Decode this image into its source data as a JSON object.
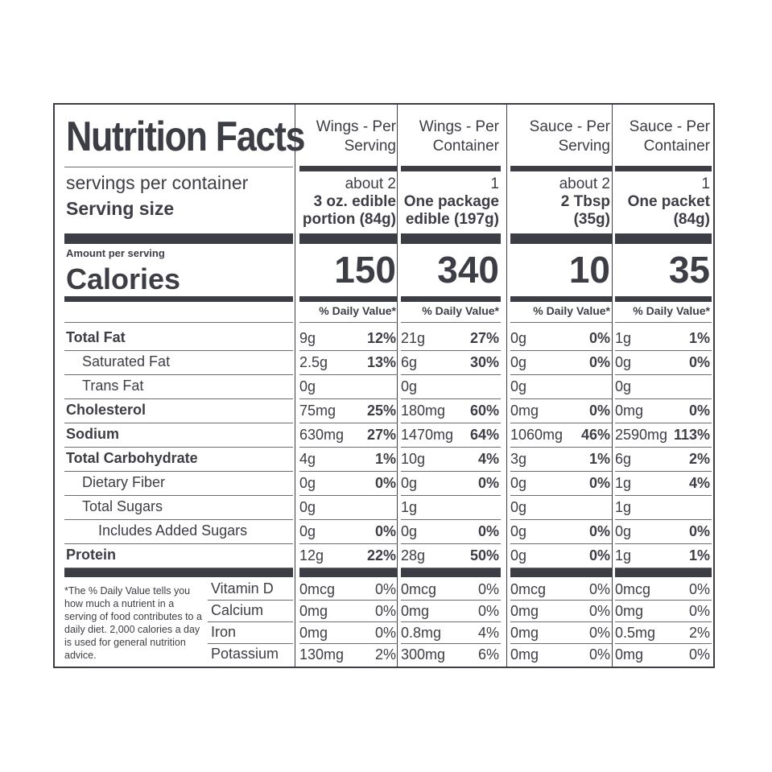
{
  "title": "Nutrition Facts",
  "servings_label": "servings per container",
  "serving_size_label": "Serving size",
  "amount_per_serving": "Amount per serving",
  "calories_label": "Calories",
  "daily_value_header": "% Daily Value*",
  "columns": [
    {
      "head1": "Wings - Per",
      "head2": "Serving",
      "servings": "about 2",
      "size1": "3 oz. edible",
      "size2": "portion (84g)",
      "calories": "150"
    },
    {
      "head1": "Wings - Per",
      "head2": "Container",
      "servings": "1",
      "size1": "One package",
      "size2": "edible (197g)",
      "calories": "340"
    },
    {
      "head1": "Sauce - Per",
      "head2": "Serving",
      "servings": "about 2",
      "size1": "2 Tbsp",
      "size2": "(35g)",
      "calories": "10"
    },
    {
      "head1": "Sauce - Per",
      "head2": "Container",
      "servings": "1",
      "size1": "One packet",
      "size2": "(84g)",
      "calories": "35"
    }
  ],
  "nutrients": [
    {
      "name": "Total Fat",
      "bold": true,
      "indent": 0,
      "values": [
        [
          "9g",
          "12%"
        ],
        [
          "21g",
          "27%"
        ],
        [
          "0g",
          "0%"
        ],
        [
          "1g",
          "1%"
        ]
      ]
    },
    {
      "name": "Saturated Fat",
      "bold": false,
      "indent": 1,
      "values": [
        [
          "2.5g",
          "13%"
        ],
        [
          "6g",
          "30%"
        ],
        [
          "0g",
          "0%"
        ],
        [
          "0g",
          "0%"
        ]
      ]
    },
    {
      "name": "Trans Fat",
      "bold": false,
      "indent": 1,
      "values": [
        [
          "0g",
          ""
        ],
        [
          "0g",
          ""
        ],
        [
          "0g",
          ""
        ],
        [
          "0g",
          ""
        ]
      ]
    },
    {
      "name": "Cholesterol",
      "bold": true,
      "indent": 0,
      "values": [
        [
          "75mg",
          "25%"
        ],
        [
          "180mg",
          "60%"
        ],
        [
          "0mg",
          "0%"
        ],
        [
          "0mg",
          "0%"
        ]
      ]
    },
    {
      "name": "Sodium",
      "bold": true,
      "indent": 0,
      "values": [
        [
          "630mg",
          "27%"
        ],
        [
          "1470mg",
          "64%"
        ],
        [
          "1060mg",
          "46%"
        ],
        [
          "2590mg",
          "113%"
        ]
      ]
    },
    {
      "name": "Total Carbohydrate",
      "bold": true,
      "indent": 0,
      "values": [
        [
          "4g",
          "1%"
        ],
        [
          "10g",
          "4%"
        ],
        [
          "3g",
          "1%"
        ],
        [
          "6g",
          "2%"
        ]
      ]
    },
    {
      "name": "Dietary Fiber",
      "bold": false,
      "indent": 1,
      "values": [
        [
          "0g",
          "0%"
        ],
        [
          "0g",
          "0%"
        ],
        [
          "0g",
          "0%"
        ],
        [
          "1g",
          "4%"
        ]
      ]
    },
    {
      "name": "Total Sugars",
      "bold": false,
      "indent": 1,
      "values": [
        [
          "0g",
          ""
        ],
        [
          "1g",
          ""
        ],
        [
          "0g",
          ""
        ],
        [
          "1g",
          ""
        ]
      ]
    },
    {
      "name": "Includes Added Sugars",
      "bold": false,
      "indent": 2,
      "values": [
        [
          "0g",
          "0%"
        ],
        [
          "0g",
          "0%"
        ],
        [
          "0g",
          "0%"
        ],
        [
          "0g",
          "0%"
        ]
      ]
    },
    {
      "name": "Protein",
      "bold": true,
      "indent": 0,
      "values": [
        [
          "12g",
          "22%"
        ],
        [
          "28g",
          "50%"
        ],
        [
          "0g",
          "0%"
        ],
        [
          "1g",
          "1%"
        ]
      ]
    }
  ],
  "vitamins": [
    {
      "name": "Vitamin D",
      "values": [
        [
          "0mcg",
          "0%"
        ],
        [
          "0mcg",
          "0%"
        ],
        [
          "0mcg",
          "0%"
        ],
        [
          "0mcg",
          "0%"
        ]
      ]
    },
    {
      "name": "Calcium",
      "values": [
        [
          "0mg",
          "0%"
        ],
        [
          "0mg",
          "0%"
        ],
        [
          "0mg",
          "0%"
        ],
        [
          "0mg",
          "0%"
        ]
      ]
    },
    {
      "name": "Iron",
      "values": [
        [
          "0mg",
          "0%"
        ],
        [
          "0.8mg",
          "4%"
        ],
        [
          "0mg",
          "0%"
        ],
        [
          "0.5mg",
          "2%"
        ]
      ]
    },
    {
      "name": "Potassium",
      "values": [
        [
          "130mg",
          "2%"
        ],
        [
          "300mg",
          "6%"
        ],
        [
          "0mg",
          "0%"
        ],
        [
          "0mg",
          "0%"
        ]
      ]
    }
  ],
  "footnote": "*The % Daily Value tells you how much a nutrient in a serving of food contributes to a daily diet. 2,000 calories a day is used for general nutrition advice."
}
